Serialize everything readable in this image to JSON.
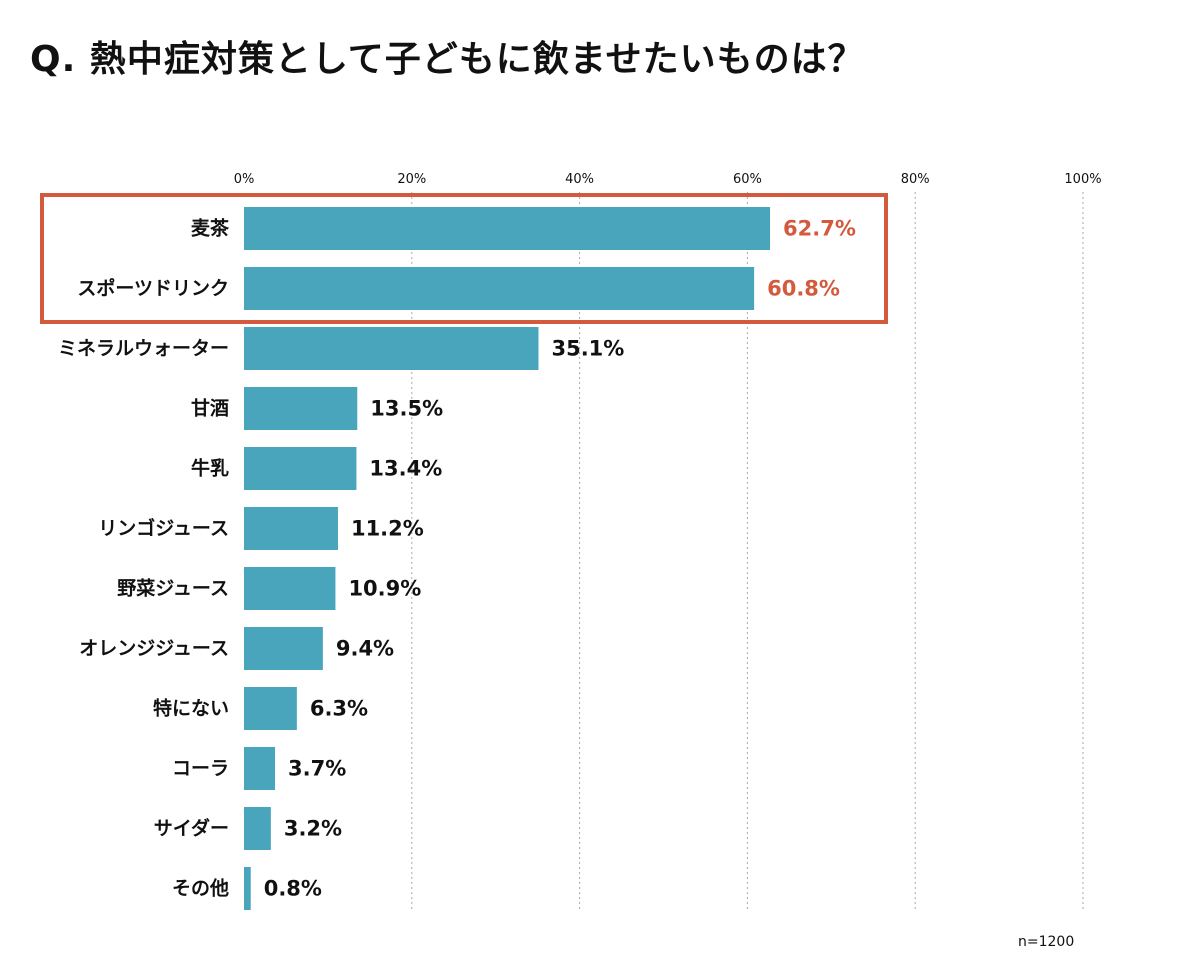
{
  "title": "Q.  熱中症対策として子どもに飲ませたいものは？",
  "note": "n=1200",
  "colors": {
    "bar": "#48a5bb",
    "highlight": "#d35a3c",
    "text": "#111111",
    "grid": "#aaaaaa"
  },
  "chart_data": {
    "type": "bar",
    "orientation": "horizontal",
    "title": "Q.  熱中症対策として子どもに飲ませたいものは？",
    "xlabel": "",
    "ylabel": "",
    "xlim": [
      0,
      100
    ],
    "xticks": [
      0,
      20,
      40,
      60,
      80,
      100
    ],
    "xtick_labels": [
      "0%",
      "20%",
      "40%",
      "60%",
      "80%",
      "100%"
    ],
    "grid": true,
    "categories": [
      "麦茶",
      "スポーツドリンク",
      "ミネラルウォーター",
      "甘酒",
      "牛乳",
      "リンゴジュース",
      "野菜ジュース",
      "オレンジジュース",
      "特にない",
      "コーラ",
      "サイダー",
      "その他"
    ],
    "values": [
      62.7,
      60.8,
      35.1,
      13.5,
      13.4,
      11.2,
      10.9,
      9.4,
      6.3,
      3.7,
      3.2,
      0.8
    ],
    "value_labels": [
      "62.7%",
      "60.8%",
      "35.1%",
      "13.5%",
      "13.4%",
      "11.2%",
      "10.9%",
      "9.4%",
      "6.3%",
      "3.7%",
      "3.2%",
      "0.8%"
    ],
    "highlighted": [
      "麦茶",
      "スポーツドリンク"
    ]
  }
}
